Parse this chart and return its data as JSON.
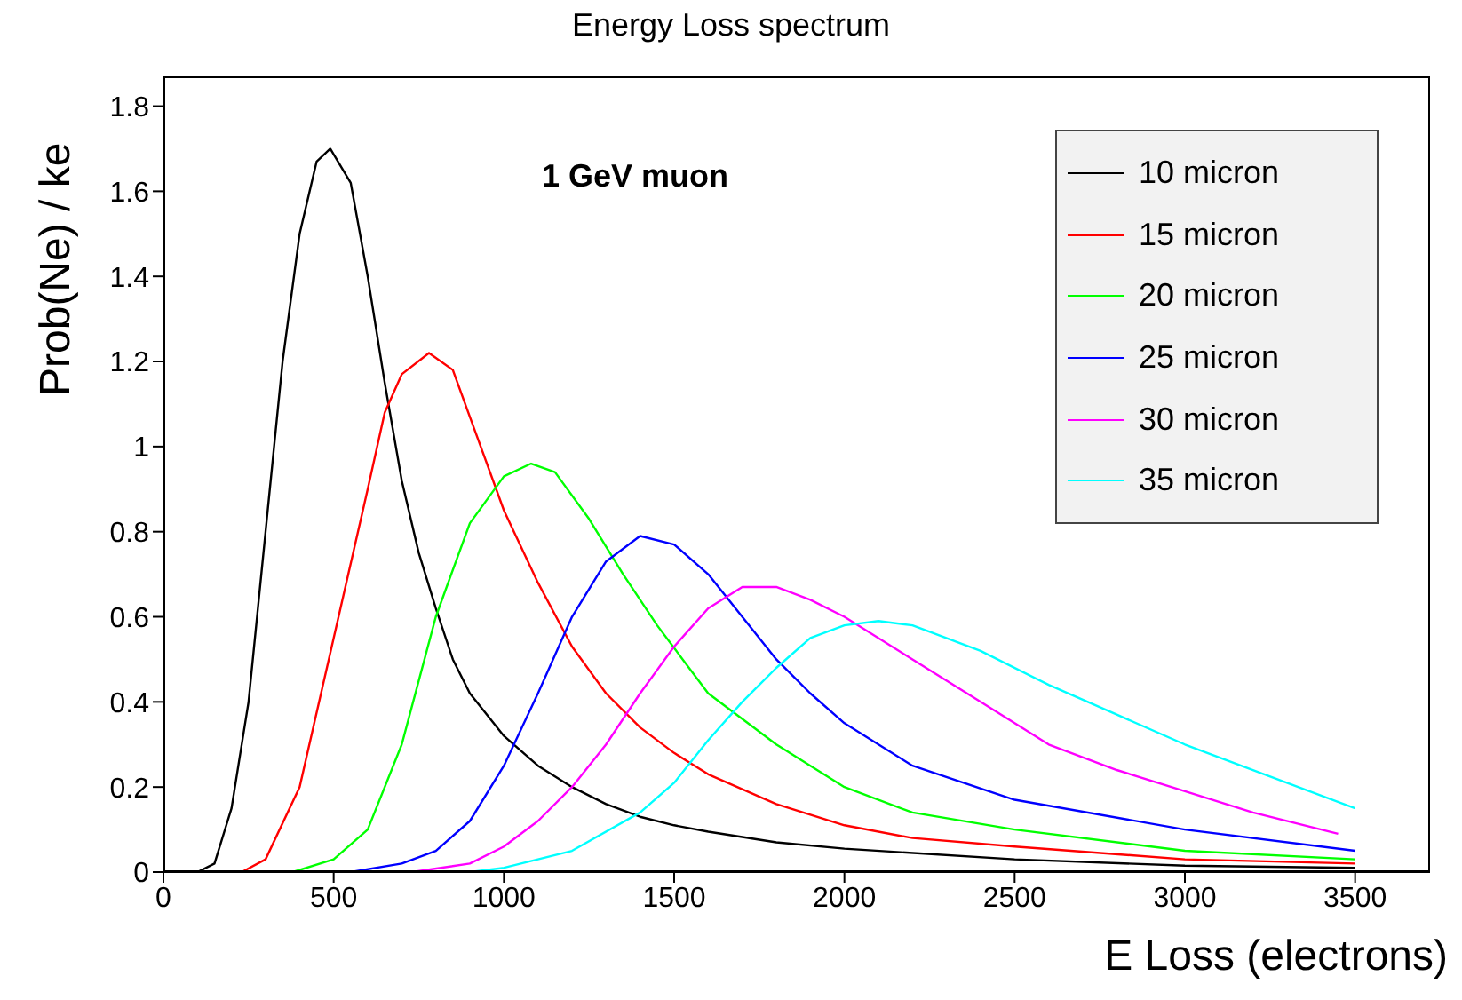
{
  "chart_data": {
    "type": "line",
    "title": "Energy Loss spectrum",
    "xlabel": "E Loss (electrons)",
    "ylabel": "Prob(Ne) / ke",
    "annotations": [
      "1 GeV muon"
    ],
    "xlim": [
      0,
      3720
    ],
    "xticks": [
      0,
      500,
      1000,
      1500,
      2000,
      2500,
      3000,
      3500
    ],
    "ylim": [
      0,
      1.87
    ],
    "yticks": [
      0,
      0.2,
      0.4,
      0.6,
      0.8,
      1,
      1.2,
      1.4,
      1.6,
      1.8
    ],
    "grid": false,
    "legend": "top right",
    "marker": "none",
    "line_style": "solid",
    "series": [
      {
        "name": "10 micron",
        "color": "#000000",
        "x": [
          100,
          150,
          200,
          250,
          300,
          350,
          400,
          450,
          490,
          550,
          600,
          650,
          700,
          750,
          800,
          850,
          900,
          1000,
          1100,
          1200,
          1300,
          1400,
          1500,
          1600,
          1800,
          2000,
          2500,
          3000,
          3500
        ],
        "values": [
          0,
          0.02,
          0.15,
          0.4,
          0.8,
          1.2,
          1.5,
          1.67,
          1.7,
          1.62,
          1.4,
          1.15,
          0.92,
          0.75,
          0.62,
          0.5,
          0.42,
          0.32,
          0.25,
          0.2,
          0.16,
          0.13,
          0.11,
          0.095,
          0.07,
          0.055,
          0.03,
          0.015,
          0.01
        ]
      },
      {
        "name": "15 micron",
        "color": "#ff0000",
        "x": [
          230,
          300,
          400,
          500,
          600,
          650,
          700,
          780,
          850,
          900,
          1000,
          1100,
          1200,
          1300,
          1400,
          1500,
          1600,
          1800,
          2000,
          2200,
          2500,
          3000,
          3500
        ],
        "values": [
          0,
          0.03,
          0.2,
          0.55,
          0.9,
          1.08,
          1.17,
          1.22,
          1.18,
          1.07,
          0.85,
          0.68,
          0.53,
          0.42,
          0.34,
          0.28,
          0.23,
          0.16,
          0.11,
          0.08,
          0.06,
          0.03,
          0.02
        ]
      },
      {
        "name": "20 micron",
        "color": "#00ff00",
        "x": [
          380,
          500,
          600,
          700,
          800,
          900,
          1000,
          1080,
          1150,
          1250,
          1350,
          1450,
          1600,
          1800,
          2000,
          2200,
          2500,
          3000,
          3500
        ],
        "values": [
          0,
          0.03,
          0.1,
          0.3,
          0.6,
          0.82,
          0.93,
          0.96,
          0.94,
          0.83,
          0.7,
          0.58,
          0.42,
          0.3,
          0.2,
          0.14,
          0.1,
          0.05,
          0.03
        ]
      },
      {
        "name": "25 micron",
        "color": "#0000ff",
        "x": [
          550,
          700,
          800,
          900,
          1000,
          1100,
          1200,
          1300,
          1400,
          1500,
          1600,
          1700,
          1800,
          1900,
          2000,
          2200,
          2500,
          3000,
          3500
        ],
        "values": [
          0,
          0.02,
          0.05,
          0.12,
          0.25,
          0.42,
          0.6,
          0.73,
          0.79,
          0.77,
          0.7,
          0.6,
          0.5,
          0.42,
          0.35,
          0.25,
          0.17,
          0.1,
          0.05
        ]
      },
      {
        "name": "30 micron",
        "color": "#ff00ff",
        "x": [
          730,
          900,
          1000,
          1100,
          1200,
          1300,
          1400,
          1500,
          1600,
          1700,
          1800,
          1900,
          2000,
          2200,
          2400,
          2600,
          2800,
          3000,
          3200,
          3450
        ],
        "values": [
          0,
          0.02,
          0.06,
          0.12,
          0.2,
          0.3,
          0.42,
          0.53,
          0.62,
          0.67,
          0.67,
          0.64,
          0.6,
          0.5,
          0.4,
          0.3,
          0.24,
          0.19,
          0.14,
          0.09
        ]
      },
      {
        "name": "35 micron",
        "color": "#00ffff",
        "x": [
          900,
          1000,
          1200,
          1400,
          1500,
          1600,
          1700,
          1800,
          1900,
          2000,
          2100,
          2200,
          2400,
          2600,
          2800,
          3000,
          3200,
          3500
        ],
        "values": [
          0,
          0.01,
          0.05,
          0.14,
          0.21,
          0.31,
          0.4,
          0.48,
          0.55,
          0.58,
          0.59,
          0.58,
          0.52,
          0.44,
          0.37,
          0.3,
          0.24,
          0.15
        ]
      }
    ]
  }
}
